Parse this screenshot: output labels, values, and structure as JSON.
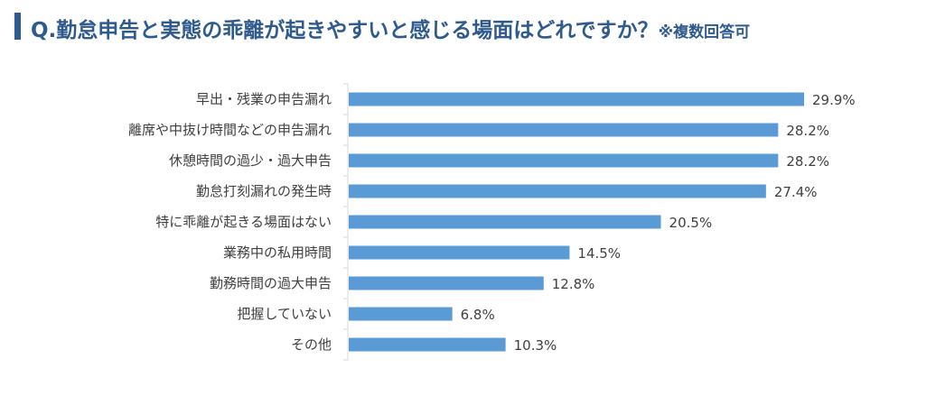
{
  "title": "Q.勤怠申告と実態の乖離が起きやすいと感じる場面はどれですか？",
  "title_note": "※複数回答可",
  "colors": {
    "title": "#2e5a8e",
    "bar": "#5b9bd5",
    "axis": "#d9d9d9"
  },
  "chart_data": {
    "type": "bar",
    "orientation": "horizontal",
    "categories": [
      "早出・残業の申告漏れ",
      "離席や中抜け時間などの申告漏れ",
      "休憩時間の過少・過大申告",
      "勤怠打刻漏れの発生時",
      "特に乖離が起きる場面はない",
      "業務中の私用時間",
      "勤務時間の過大申告",
      "把握していない",
      "その他"
    ],
    "values": [
      29.9,
      28.2,
      28.2,
      27.4,
      20.5,
      14.5,
      12.8,
      6.8,
      10.3
    ],
    "labels": [
      "29.9%",
      "28.2%",
      "28.2%",
      "27.4%",
      "20.5%",
      "14.5%",
      "12.8%",
      "6.8%",
      "10.3%"
    ],
    "unit": "%",
    "grid": false
  }
}
